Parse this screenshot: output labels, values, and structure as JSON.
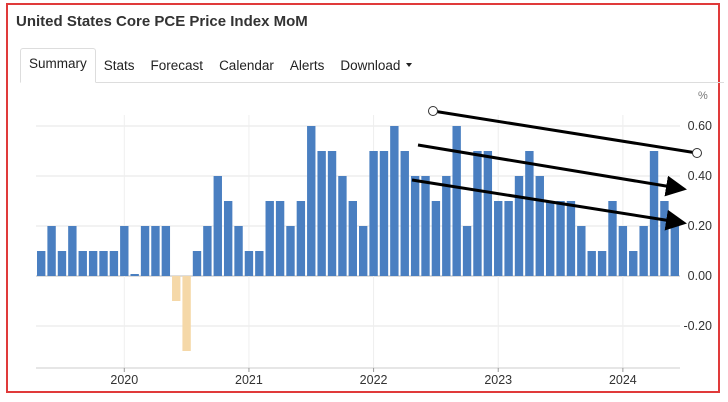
{
  "page": {
    "title": "United States Core PCE Price Index MoM"
  },
  "tabs": [
    {
      "label": "Summary"
    },
    {
      "label": "Stats"
    },
    {
      "label": "Forecast"
    },
    {
      "label": "Calendar"
    },
    {
      "label": "Alerts"
    },
    {
      "label": "Download"
    }
  ],
  "chart_data": {
    "type": "bar",
    "unit": "%",
    "x_start": "2019-05",
    "values": [
      0.1,
      0.2,
      0.1,
      0.2,
      0.1,
      0.1,
      0.1,
      0.1,
      0.2,
      0.0,
      0.2,
      0.2,
      0.2,
      -0.1,
      -0.3,
      0.1,
      0.2,
      0.4,
      0.3,
      0.2,
      0.1,
      0.1,
      0.3,
      0.3,
      0.2,
      0.3,
      0.6,
      0.5,
      0.5,
      0.4,
      0.3,
      0.2,
      0.5,
      0.5,
      0.6,
      0.5,
      0.4,
      0.4,
      0.3,
      0.4,
      0.6,
      0.2,
      0.5,
      0.5,
      0.3,
      0.3,
      0.4,
      0.5,
      0.4,
      0.3,
      0.3,
      0.3,
      0.2,
      0.1,
      0.1,
      0.3,
      0.2,
      0.1,
      0.2,
      0.5,
      0.3,
      0.2
    ],
    "positive_color": "#4a7fc1",
    "negative_color": "#f5d8a8",
    "ylim": [
      -0.3,
      0.7
    ],
    "y_ticks": [
      "0.60",
      "0.40",
      "0.20",
      "0.00",
      "-0.20"
    ],
    "x_ticks": [
      "2020",
      "2021",
      "2022",
      "2023",
      "2024"
    ],
    "grid": true
  }
}
